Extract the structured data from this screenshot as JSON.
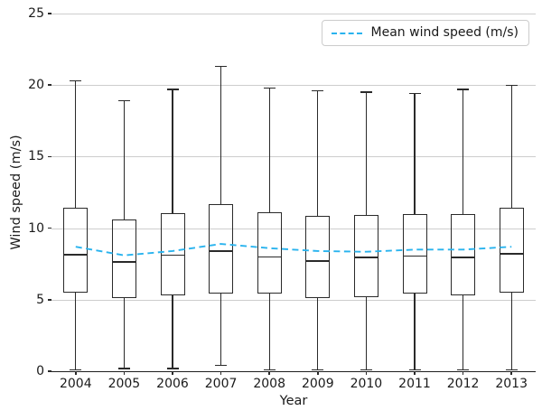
{
  "chart_data": {
    "type": "boxplot",
    "title": "",
    "xlabel": "Year",
    "ylabel": "Wind speed (m/s)",
    "ylim": [
      0,
      25
    ],
    "yticks": [
      0,
      5,
      10,
      15,
      20,
      25
    ],
    "categories": [
      "2004",
      "2005",
      "2006",
      "2007",
      "2008",
      "2009",
      "2010",
      "2011",
      "2012",
      "2013"
    ],
    "boxes": [
      {
        "year": "2004",
        "whisker_low": 0.1,
        "q1": 5.5,
        "median": 8.15,
        "q3": 11.4,
        "whisker_high": 20.3
      },
      {
        "year": "2005",
        "whisker_low": 0.2,
        "q1": 5.1,
        "median": 7.65,
        "q3": 10.6,
        "whisker_high": 18.9
      },
      {
        "year": "2006",
        "whisker_low": 0.2,
        "q1": 5.3,
        "median": 8.1,
        "q3": 11.05,
        "whisker_high": 19.7
      },
      {
        "year": "2007",
        "whisker_low": 0.4,
        "q1": 5.4,
        "median": 8.4,
        "q3": 11.7,
        "whisker_high": 21.3
      },
      {
        "year": "2008",
        "whisker_low": 0.1,
        "q1": 5.4,
        "median": 8.0,
        "q3": 11.1,
        "whisker_high": 19.8
      },
      {
        "year": "2009",
        "whisker_low": 0.1,
        "q1": 5.1,
        "median": 7.7,
        "q3": 10.85,
        "whisker_high": 19.6
      },
      {
        "year": "2010",
        "whisker_low": 0.1,
        "q1": 5.2,
        "median": 7.95,
        "q3": 10.9,
        "whisker_high": 19.5
      },
      {
        "year": "2011",
        "whisker_low": 0.1,
        "q1": 5.45,
        "median": 8.05,
        "q3": 11.0,
        "whisker_high": 19.4
      },
      {
        "year": "2012",
        "whisker_low": 0.1,
        "q1": 5.3,
        "median": 7.95,
        "q3": 11.0,
        "whisker_high": 19.7
      },
      {
        "year": "2013",
        "whisker_low": 0.1,
        "q1": 5.5,
        "median": 8.2,
        "q3": 11.4,
        "whisker_high": 20.0
      }
    ],
    "mean_series": {
      "label": "Mean wind speed (m/s)",
      "color": "#29b3ee",
      "line_style": "dashed",
      "values": [
        8.7,
        8.1,
        8.4,
        8.9,
        8.6,
        8.4,
        8.35,
        8.5,
        8.5,
        8.7
      ]
    },
    "legend": {
      "position": "upper right"
    },
    "grid": "horizontal",
    "colors": {
      "gridline": "#cdcdcd",
      "box_line": "#2a2a2a",
      "spine": "#1f1f1f",
      "mean_line": "#29b3ee",
      "background": "#ffffff"
    }
  }
}
